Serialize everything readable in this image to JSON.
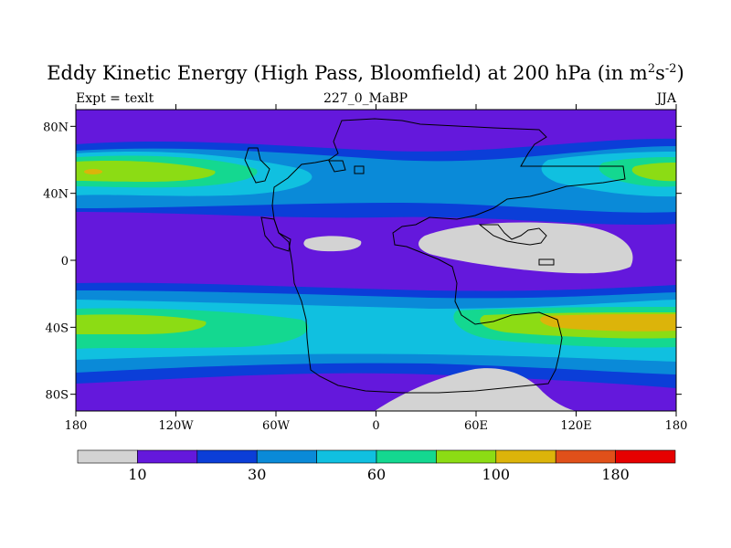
{
  "title": {
    "text": "Eddy Kinetic Energy (High Pass, Bloomfield) at 200 hPa (in m",
    "sup1": "2",
    "mid": "s",
    "sup2": "-2",
    "close": ")"
  },
  "subtitle": {
    "left": "Expt = texlt",
    "center": "227_0_MaBP",
    "right": "JJA"
  },
  "axes": {
    "lon_ticks": [
      "180",
      "120W",
      "60W",
      "0",
      "60E",
      "120E",
      "180"
    ],
    "lat_ticks": [
      "80N",
      "40N",
      "0",
      "40S",
      "80S"
    ]
  },
  "colors": {
    "gray": "#d3d3d3",
    "c1": "#6418dc",
    "c2": "#0b3ed8",
    "c3": "#0a8ad8",
    "c4": "#10c0e0",
    "c5": "#14d890",
    "c6": "#8cdc14",
    "c7": "#dcb40a",
    "c8": "#e0501a",
    "c9": "#e60000",
    "coast": "#000000"
  },
  "colorbar": {
    "labels": [
      "10",
      "30",
      "60",
      "100",
      "180"
    ],
    "bin_colors": [
      "#d3d3d3",
      "#6418dc",
      "#0b3ed8",
      "#0a8ad8",
      "#10c0e0",
      "#14d890",
      "#8cdc14",
      "#dcb40a",
      "#e0501a",
      "#e60000"
    ]
  }
}
